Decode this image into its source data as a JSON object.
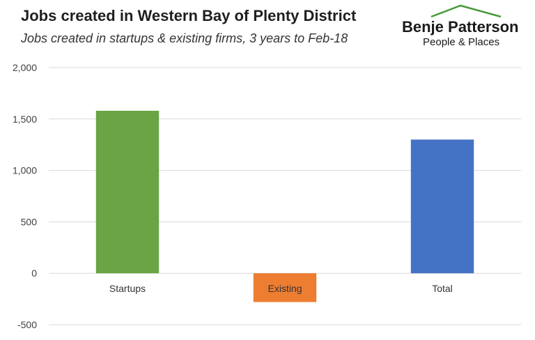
{
  "header": {
    "title": "Jobs created in Western Bay of Plenty District",
    "subtitle": "Jobs created in startups & existing firms, 3 years to Feb-18"
  },
  "logo": {
    "name": "Benje Patterson",
    "tagline": "People & Places",
    "roof_color": "#4a9a3c"
  },
  "chart_data": {
    "type": "bar",
    "title": "Jobs created in Western Bay of Plenty District",
    "subtitle": "Jobs created in startups & existing firms, 3 years to Feb-18",
    "categories": [
      "Startups",
      "Existing",
      "Total"
    ],
    "values": [
      1580,
      -280,
      1300
    ],
    "colors": [
      "#6aa444",
      "#ed7d31",
      "#4472c4"
    ],
    "ylim": [
      -500,
      2000
    ],
    "yticks": [
      2000,
      1500,
      1000,
      500,
      0,
      -500
    ],
    "ytick_labels": [
      "2,000",
      "1,500",
      "1,000",
      "500",
      "0",
      "-500"
    ],
    "grid": true,
    "legend": "none",
    "xlabel": "",
    "ylabel": ""
  }
}
